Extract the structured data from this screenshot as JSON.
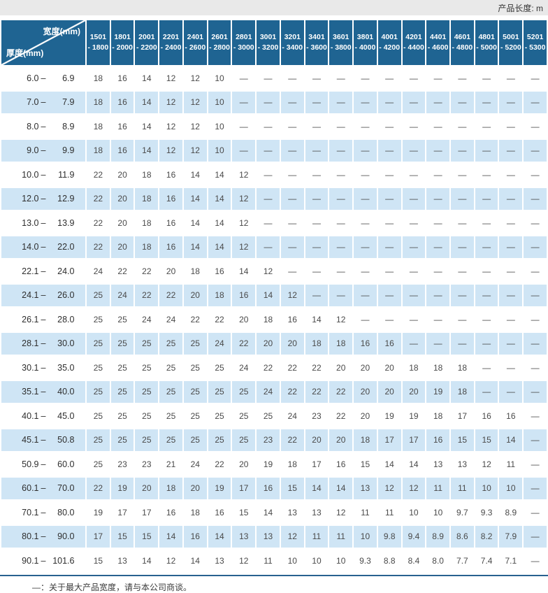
{
  "topbar": {
    "unit_label": "产品长度: m"
  },
  "footnote": "—：关于最大产品宽度，请与本公司商谈。",
  "colors": {
    "header_blue": "#1f6492",
    "row_blue": "#cfe5f5",
    "rule_blue": "#28618f",
    "topbar_gray": "#e9e9e9"
  },
  "chart_data": {
    "type": "table",
    "title": "最大产品长度 (m) 按厚度×宽度",
    "corner_top_right": "宽度(mm)",
    "corner_bottom_left": "厚度(mm)",
    "width_columns": [
      {
        "line1": "1501",
        "line2": "- 1800"
      },
      {
        "line1": "1801",
        "line2": "- 2000"
      },
      {
        "line1": "2001",
        "line2": "- 2200"
      },
      {
        "line1": "2201",
        "line2": "- 2400"
      },
      {
        "line1": "2401",
        "line2": "- 2600"
      },
      {
        "line1": "2601",
        "line2": "- 2800"
      },
      {
        "line1": "2801",
        "line2": "- 3000"
      },
      {
        "line1": "3001",
        "line2": "- 3200"
      },
      {
        "line1": "3201",
        "line2": "- 3400"
      },
      {
        "line1": "3401",
        "line2": "- 3600"
      },
      {
        "line1": "3601",
        "line2": "- 3800"
      },
      {
        "line1": "3801",
        "line2": "- 4000"
      },
      {
        "line1": "4001",
        "line2": "- 4200"
      },
      {
        "line1": "4201",
        "line2": "- 4400"
      },
      {
        "line1": "4401",
        "line2": "- 4600"
      },
      {
        "line1": "4601",
        "line2": "- 4800"
      },
      {
        "line1": "4801",
        "line2": "- 5000"
      },
      {
        "line1": "5001",
        "line2": "- 5200"
      },
      {
        "line1": "5201",
        "line2": "- 5300"
      }
    ],
    "rows": [
      {
        "lo": "6.0",
        "hi": "6.9",
        "values": [
          "18",
          "16",
          "14",
          "12",
          "12",
          "10",
          "—",
          "—",
          "—",
          "—",
          "—",
          "—",
          "—",
          "—",
          "—",
          "—",
          "—",
          "—",
          "—"
        ]
      },
      {
        "lo": "7.0",
        "hi": "7.9",
        "values": [
          "18",
          "16",
          "14",
          "12",
          "12",
          "10",
          "—",
          "—",
          "—",
          "—",
          "—",
          "—",
          "—",
          "—",
          "—",
          "—",
          "—",
          "—",
          "—"
        ]
      },
      {
        "lo": "8.0",
        "hi": "8.9",
        "values": [
          "18",
          "16",
          "14",
          "12",
          "12",
          "10",
          "—",
          "—",
          "—",
          "—",
          "—",
          "—",
          "—",
          "—",
          "—",
          "—",
          "—",
          "—",
          "—"
        ]
      },
      {
        "lo": "9.0",
        "hi": "9.9",
        "values": [
          "18",
          "16",
          "14",
          "12",
          "12",
          "10",
          "—",
          "—",
          "—",
          "—",
          "—",
          "—",
          "—",
          "—",
          "—",
          "—",
          "—",
          "—",
          "—"
        ]
      },
      {
        "lo": "10.0",
        "hi": "11.9",
        "values": [
          "22",
          "20",
          "18",
          "16",
          "14",
          "14",
          "12",
          "—",
          "—",
          "—",
          "—",
          "—",
          "—",
          "—",
          "—",
          "—",
          "—",
          "—",
          "—"
        ]
      },
      {
        "lo": "12.0",
        "hi": "12.9",
        "values": [
          "22",
          "20",
          "18",
          "16",
          "14",
          "14",
          "12",
          "—",
          "—",
          "—",
          "—",
          "—",
          "—",
          "—",
          "—",
          "—",
          "—",
          "—",
          "—"
        ]
      },
      {
        "lo": "13.0",
        "hi": "13.9",
        "values": [
          "22",
          "20",
          "18",
          "16",
          "14",
          "14",
          "12",
          "—",
          "—",
          "—",
          "—",
          "—",
          "—",
          "—",
          "—",
          "—",
          "—",
          "—",
          "—"
        ]
      },
      {
        "lo": "14.0",
        "hi": "22.0",
        "values": [
          "22",
          "20",
          "18",
          "16",
          "14",
          "14",
          "12",
          "—",
          "—",
          "—",
          "—",
          "—",
          "—",
          "—",
          "—",
          "—",
          "—",
          "—",
          "—"
        ]
      },
      {
        "lo": "22.1",
        "hi": "24.0",
        "values": [
          "24",
          "22",
          "22",
          "20",
          "18",
          "16",
          "14",
          "12",
          "—",
          "—",
          "—",
          "—",
          "—",
          "—",
          "—",
          "—",
          "—",
          "—",
          "—"
        ]
      },
      {
        "lo": "24.1",
        "hi": "26.0",
        "values": [
          "25",
          "24",
          "22",
          "22",
          "20",
          "18",
          "16",
          "14",
          "12",
          "—",
          "—",
          "—",
          "—",
          "—",
          "—",
          "—",
          "—",
          "—",
          "—"
        ]
      },
      {
        "lo": "26.1",
        "hi": "28.0",
        "values": [
          "25",
          "25",
          "24",
          "24",
          "22",
          "22",
          "20",
          "18",
          "16",
          "14",
          "12",
          "—",
          "—",
          "—",
          "—",
          "—",
          "—",
          "—",
          "—"
        ]
      },
      {
        "lo": "28.1",
        "hi": "30.0",
        "values": [
          "25",
          "25",
          "25",
          "25",
          "25",
          "24",
          "22",
          "20",
          "20",
          "18",
          "18",
          "16",
          "16",
          "—",
          "—",
          "—",
          "—",
          "—",
          "—"
        ]
      },
      {
        "lo": "30.1",
        "hi": "35.0",
        "values": [
          "25",
          "25",
          "25",
          "25",
          "25",
          "25",
          "24",
          "22",
          "22",
          "22",
          "20",
          "20",
          "20",
          "18",
          "18",
          "18",
          "—",
          "—",
          "—"
        ]
      },
      {
        "lo": "35.1",
        "hi": "40.0",
        "values": [
          "25",
          "25",
          "25",
          "25",
          "25",
          "25",
          "25",
          "24",
          "22",
          "22",
          "22",
          "20",
          "20",
          "20",
          "19",
          "18",
          "—",
          "—",
          "—"
        ]
      },
      {
        "lo": "40.1",
        "hi": "45.0",
        "values": [
          "25",
          "25",
          "25",
          "25",
          "25",
          "25",
          "25",
          "25",
          "24",
          "23",
          "22",
          "20",
          "19",
          "19",
          "18",
          "17",
          "16",
          "16",
          "—"
        ]
      },
      {
        "lo": "45.1",
        "hi": "50.8",
        "values": [
          "25",
          "25",
          "25",
          "25",
          "25",
          "25",
          "25",
          "23",
          "22",
          "20",
          "20",
          "18",
          "17",
          "17",
          "16",
          "15",
          "15",
          "14",
          "—"
        ]
      },
      {
        "lo": "50.9",
        "hi": "60.0",
        "values": [
          "25",
          "23",
          "23",
          "21",
          "24",
          "22",
          "20",
          "19",
          "18",
          "17",
          "16",
          "15",
          "14",
          "14",
          "13",
          "13",
          "12",
          "11",
          "—"
        ]
      },
      {
        "lo": "60.1",
        "hi": "70.0",
        "values": [
          "22",
          "19",
          "20",
          "18",
          "20",
          "19",
          "17",
          "16",
          "15",
          "14",
          "14",
          "13",
          "12",
          "12",
          "11",
          "11",
          "10",
          "10",
          "—"
        ]
      },
      {
        "lo": "70.1",
        "hi": "80.0",
        "values": [
          "19",
          "17",
          "17",
          "16",
          "18",
          "16",
          "15",
          "14",
          "13",
          "13",
          "12",
          "11",
          "11",
          "10",
          "10",
          "9.7",
          "9.3",
          "8.9",
          "—"
        ]
      },
      {
        "lo": "80.1",
        "hi": "90.0",
        "values": [
          "17",
          "15",
          "15",
          "14",
          "16",
          "14",
          "13",
          "13",
          "12",
          "11",
          "11",
          "10",
          "9.8",
          "9.4",
          "8.9",
          "8.6",
          "8.2",
          "7.9",
          "—"
        ]
      },
      {
        "lo": "90.1",
        "hi": "101.6",
        "values": [
          "15",
          "13",
          "14",
          "12",
          "14",
          "13",
          "12",
          "11",
          "10",
          "10",
          "10",
          "9.3",
          "8.8",
          "8.4",
          "8.0",
          "7.7",
          "7.4",
          "7.1",
          "—"
        ]
      }
    ]
  }
}
